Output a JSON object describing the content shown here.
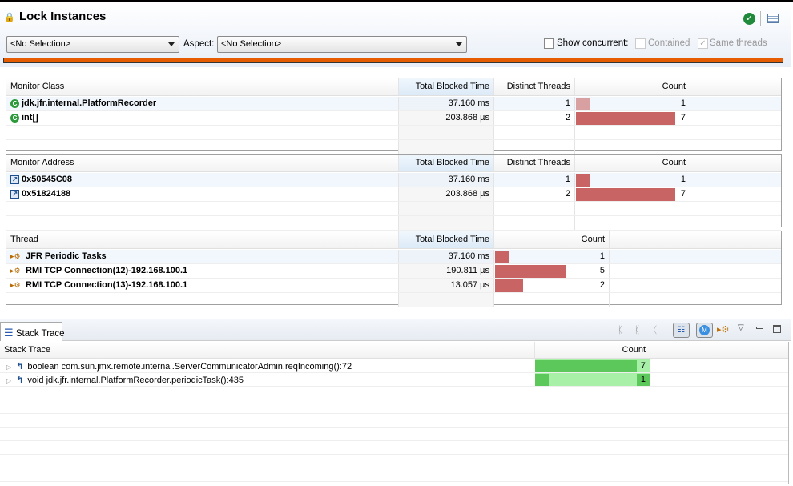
{
  "header": {
    "title": "Lock Instances",
    "combo1": "<No Selection>",
    "aspect_label": "Aspect:",
    "combo2": "<No Selection>",
    "show_concurrent": "Show concurrent:",
    "contained": "Contained",
    "same_threads": "Same threads",
    "show_concurrent_checked": false,
    "contained_checked": false,
    "same_threads_checked": true
  },
  "colors": {
    "accent_bar": "#e65c00",
    "count_bar": "#c86464",
    "stack_bar_dark": "#5cc85c",
    "stack_bar_light": "#a8f0a8"
  },
  "monitor_class": {
    "headers": [
      "Monitor Class",
      "Total Blocked Time",
      "Distinct Threads",
      "Count"
    ],
    "rows": [
      {
        "name": "jdk.jfr.internal.PlatformRecorder",
        "time": "37.160 ms",
        "threads": "1",
        "count": 1
      },
      {
        "name": "int[]",
        "time": "203.868 µs",
        "threads": "2",
        "count": 7
      }
    ]
  },
  "monitor_address": {
    "headers": [
      "Monitor Address",
      "Total Blocked Time",
      "Distinct Threads",
      "Count"
    ],
    "rows": [
      {
        "name": "0x50545C08",
        "time": "37.160 ms",
        "threads": "1",
        "count": 1
      },
      {
        "name": "0x51824188",
        "time": "203.868 µs",
        "threads": "2",
        "count": 7
      }
    ]
  },
  "thread": {
    "headers": [
      "Thread",
      "Total Blocked Time",
      "Count"
    ],
    "rows": [
      {
        "name": "JFR Periodic Tasks",
        "time": "37.160 ms",
        "count": 1
      },
      {
        "name": "RMI TCP Connection(12)-192.168.100.1",
        "time": "190.811 µs",
        "count": 5
      },
      {
        "name": "RMI TCP Connection(13)-192.168.100.1",
        "time": "13.057 µs",
        "count": 2
      }
    ]
  },
  "stack": {
    "tab": "Stack Trace",
    "headers": [
      "Stack Trace",
      "Count"
    ],
    "rows": [
      {
        "frame": "boolean com.sun.jmx.remote.internal.ServerCommunicatorAdmin.reqIncoming():72",
        "count": 7
      },
      {
        "frame": "void jdk.jfr.internal.PlatformRecorder.periodicTask():435",
        "count": 1
      }
    ]
  }
}
